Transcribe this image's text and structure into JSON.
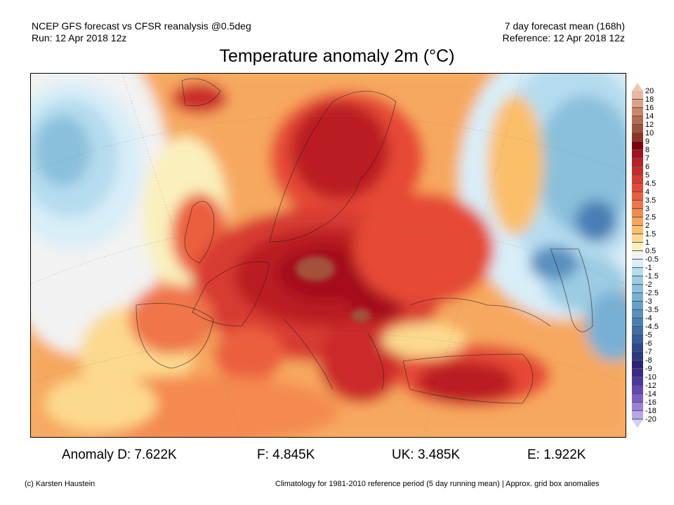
{
  "header": {
    "model_line": "NCEP GFS forecast vs CFSR reanalysis @0.5deg",
    "run_line": "Run: 12 Apr 2018 12z",
    "period_line": "7 day forecast mean (168h)",
    "reference_line": "Reference: 12 Apr 2018 12z"
  },
  "title": "Temperature anomaly 2m (°C)",
  "colorbar": {
    "labels": [
      "20",
      "18",
      "16",
      "14",
      "12",
      "10",
      "9",
      "8",
      "7",
      "6",
      "5",
      "4.5",
      "4",
      "3.5",
      "3",
      "2.5",
      "2",
      "1.5",
      "1",
      "0.5",
      "-0.5",
      "-1",
      "-1.5",
      "-2",
      "-2.5",
      "-3",
      "-3.5",
      "-4",
      "-4.5",
      "-5",
      "-6",
      "-7",
      "-8",
      "-9",
      "-10",
      "-12",
      "-14",
      "-16",
      "-18",
      "-20"
    ],
    "colors": [
      "#e8b7a0",
      "#dea088",
      "#cd8468",
      "#b86a50",
      "#a3513b",
      "#8f3422",
      "#830010",
      "#a5101c",
      "#bb1e24",
      "#cc2a2a",
      "#d83a30",
      "#e64a35",
      "#ec5f3e",
      "#f07448",
      "#f48a50",
      "#f8a55c",
      "#fbbf6b",
      "#fcd98e",
      "#faf0bc",
      "#f2f2f2",
      "#d8eef8",
      "#b5dcee",
      "#9cccE4",
      "#8ac0dc",
      "#78b0d4",
      "#67a0ca",
      "#5890c0",
      "#4a7fb5",
      "#3f6ea8",
      "#365c9c",
      "#2d4a8e",
      "#283a80",
      "#2a2478",
      "#3a2a8a",
      "#4e38a0",
      "#6448b4",
      "#7c60c8",
      "#9a80dc",
      "#b8a6ec"
    ],
    "top_arrow_color": "#f0c6b0",
    "bottom_arrow_color": "#d4ccf4"
  },
  "anomalies": [
    {
      "text": "Anomaly D: 7.622K"
    },
    {
      "text": "F: 4.845K"
    },
    {
      "text": "UK: 3.485K"
    },
    {
      "text": "E: 1.922K"
    }
  ],
  "footer": {
    "credit": "(c) Karsten Haustein",
    "note": "Climatology for 1981-2010 reference period (5 day running mean) | Approx. grid box anomalies"
  }
}
